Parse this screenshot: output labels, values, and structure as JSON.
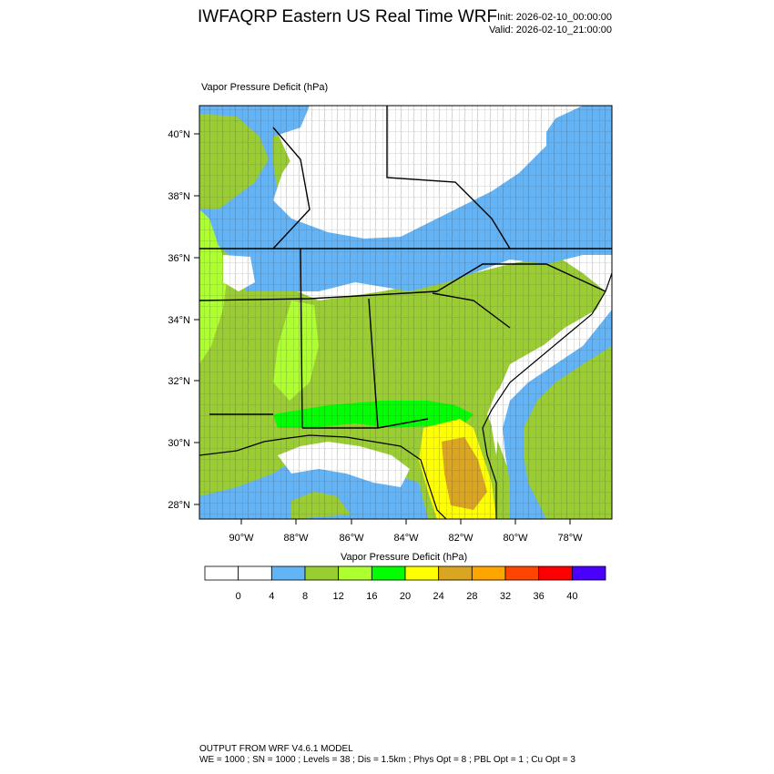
{
  "header": {
    "title": "IWFAQRP Eastern US Real Time WRF",
    "init": "Init: 2026-02-10_00:00:00",
    "valid": "Valid: 2026-02-10_21:00:00"
  },
  "plot": {
    "subtitle": "Vapor Pressure Deficit   (hPa)",
    "lat_labels": [
      "40°N",
      "38°N",
      "36°N",
      "34°N",
      "32°N",
      "30°N",
      "28°N"
    ],
    "lon_labels": [
      "90°W",
      "88°W",
      "86°W",
      "84°W",
      "82°W",
      "80°W",
      "78°W"
    ]
  },
  "colorbar": {
    "title": "Vapor Pressure Deficit  (hPa)",
    "labels": [
      "0",
      "4",
      "8",
      "12",
      "16",
      "20",
      "24",
      "28",
      "32",
      "36",
      "40"
    ],
    "colors": [
      "#ffffff",
      "#ffffff",
      "#63b4f7",
      "#9acd32",
      "#adff2f",
      "#00ff00",
      "#ffff00",
      "#daa520",
      "#ffa500",
      "#ff4500",
      "#ff0000",
      "#4b00ff"
    ]
  },
  "footer": {
    "line1": "OUTPUT FROM WRF V4.6.1 MODEL",
    "line2": "WE = 1000 ; SN = 1000 ; Levels = 38 ; Dis = 1.5km ; Phys Opt = 8 ; PBL Opt = 1 ; Cu Opt = 3"
  }
}
